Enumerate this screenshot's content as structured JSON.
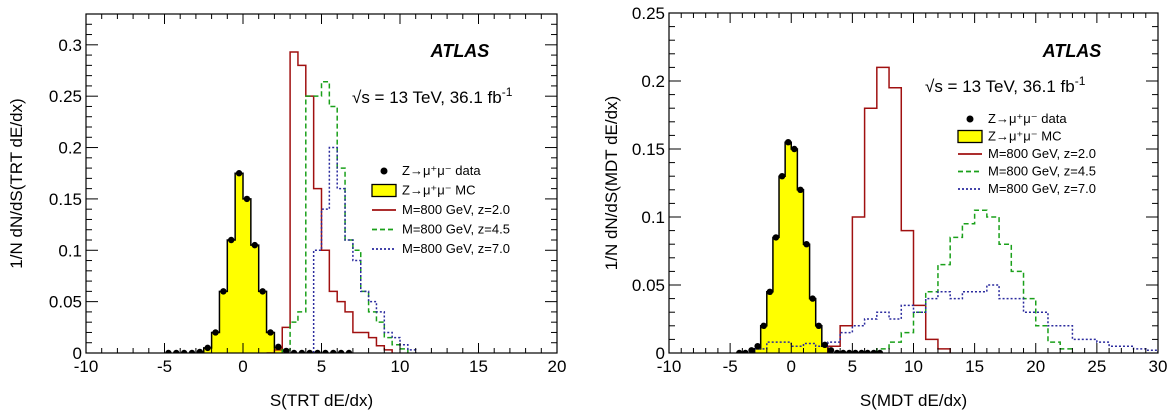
{
  "chart_data": [
    {
      "type": "histogram",
      "atlas_label": "ATLAS",
      "energy_label": "√s = 13 TeV, 36.1 fb",
      "energy_sup": "-1",
      "xlabel": "S(TRT dE/dx)",
      "ylabel": "1/N dN/dS(TRT dE/dx)",
      "xlim": [
        -10,
        20
      ],
      "ylim": [
        0,
        0.33
      ],
      "xticks": [
        "-10",
        "-5",
        "0",
        "5",
        "10",
        "15",
        "20"
      ],
      "xtick_values": [
        -10,
        -5,
        0,
        5,
        10,
        15,
        20
      ],
      "yticks": [
        "0",
        "0.05",
        "0.1",
        "0.15",
        "0.2",
        "0.25",
        "0.3"
      ],
      "ytick_values": [
        0,
        0.05,
        0.1,
        0.15,
        0.2,
        0.25,
        0.3
      ],
      "legend_position": "right",
      "legend": [
        {
          "label": "Z→μ⁺μ⁻ data",
          "kind": "marker"
        },
        {
          "label": "Z→μ⁺μ⁻ MC",
          "kind": "fill"
        },
        {
          "label": "M=800 GeV, z=2.0",
          "kind": "line",
          "color": "#a01010",
          "dash": ""
        },
        {
          "label": "M=800 GeV, z=4.5",
          "kind": "line",
          "color": "#1aa01a",
          "dash": "5,3"
        },
        {
          "label": "M=800 GeV, z=7.0",
          "kind": "line",
          "color": "#2b2b9e",
          "dash": "2,2"
        }
      ],
      "mc": {
        "edges": [
          -2.5,
          -2,
          -1.5,
          -1,
          -0.5,
          0,
          0.5,
          1,
          1.5,
          2,
          2.5
        ],
        "values": [
          0.005,
          0.02,
          0.06,
          0.11,
          0.175,
          0.15,
          0.105,
          0.06,
          0.02,
          0.005
        ]
      },
      "data_points": {
        "x": [
          -4.75,
          -4.25,
          -3.75,
          -3.25,
          -2.75,
          -2.25,
          -1.75,
          -1.25,
          -0.75,
          -0.25,
          0.25,
          0.75,
          1.25,
          1.75,
          2.25,
          2.75,
          3.25,
          3.75,
          4.25,
          4.75,
          5.25,
          5.75,
          6.25,
          6.75
        ],
        "y": [
          0,
          0,
          0,
          0,
          0.001,
          0.005,
          0.02,
          0.06,
          0.11,
          0.175,
          0.15,
          0.105,
          0.06,
          0.02,
          0.006,
          0.002,
          0,
          0,
          0,
          0,
          0,
          0,
          0,
          0
        ]
      },
      "signals": [
        {
          "name": "M=800 GeV, z=2.0",
          "color": "#a01010",
          "dash": "",
          "edges": [
            1.5,
            2,
            2.5,
            3,
            3.5,
            4,
            4.5,
            5,
            5.5,
            6,
            6.5,
            7,
            7.5,
            8,
            8.5,
            9,
            9.5
          ],
          "values": [
            0,
            0.003,
            0.025,
            0.293,
            0.28,
            0.25,
            0.16,
            0.1,
            0.06,
            0.05,
            0.04,
            0.02,
            0.02,
            0.015,
            0.007,
            0.003
          ]
        },
        {
          "name": "M=800 GeV, z=4.5",
          "color": "#1aa01a",
          "dash": "5,3",
          "edges": [
            2.5,
            3,
            3.5,
            4,
            4.5,
            5,
            5.5,
            6,
            6.5,
            7,
            7.5,
            8,
            8.5,
            9,
            9.5,
            10,
            10.5
          ],
          "values": [
            0.003,
            0.03,
            0.04,
            0.25,
            0.25,
            0.264,
            0.24,
            0.18,
            0.11,
            0.1,
            0.06,
            0.04,
            0.03,
            0.015,
            0.008,
            0.004
          ]
        },
        {
          "name": "M=800 GeV, z=7.0",
          "color": "#2b2b9e",
          "dash": "2,2",
          "edges": [
            4.5,
            5,
            5.5,
            6,
            6.5,
            7,
            7.5,
            8,
            8.5,
            9,
            9.5,
            10,
            10.5,
            11
          ],
          "values": [
            0.1,
            0.14,
            0.2,
            0.16,
            0.11,
            0.09,
            0.06,
            0.05,
            0.04,
            0.02,
            0.015,
            0.008,
            0.003
          ]
        }
      ]
    },
    {
      "type": "histogram",
      "atlas_label": "ATLAS",
      "energy_label": "√s = 13 TeV, 36.1 fb",
      "energy_sup": "-1",
      "xlabel": "S(MDT dE/dx)",
      "ylabel": "1/N dN/dS(MDT dE/dx)",
      "xlim": [
        -10,
        30
      ],
      "ylim": [
        0,
        0.25
      ],
      "xticks": [
        "-10",
        "-5",
        "0",
        "5",
        "10",
        "15",
        "20",
        "25",
        "30"
      ],
      "xtick_values": [
        -10,
        -5,
        0,
        5,
        10,
        15,
        20,
        25,
        30
      ],
      "yticks": [
        "0",
        "0.05",
        "0.1",
        "0.15",
        "0.2",
        "0.25"
      ],
      "ytick_values": [
        0,
        0.05,
        0.1,
        0.15,
        0.2,
        0.25
      ],
      "legend_position": "top-right",
      "legend": [
        {
          "label": "Z→μ⁺μ⁻ data",
          "kind": "marker"
        },
        {
          "label": "Z→μ⁺μ⁻ MC",
          "kind": "fill"
        },
        {
          "label": "M=800 GeV, z=2.0",
          "kind": "line",
          "color": "#a01010",
          "dash": ""
        },
        {
          "label": "M=800 GeV, z=4.5",
          "kind": "line",
          "color": "#1aa01a",
          "dash": "5,3"
        },
        {
          "label": "M=800 GeV, z=7.0",
          "kind": "line",
          "color": "#2b2b9e",
          "dash": "2,2"
        }
      ],
      "mc": {
        "edges": [
          -3,
          -2.5,
          -2,
          -1.5,
          -1,
          -0.5,
          0,
          0.5,
          1,
          1.5,
          2,
          2.5,
          3
        ],
        "values": [
          0.003,
          0.02,
          0.045,
          0.085,
          0.13,
          0.155,
          0.15,
          0.12,
          0.08,
          0.04,
          0.02,
          0.005
        ]
      },
      "data_points": {
        "x": [
          -4.25,
          -3.75,
          -3.25,
          -2.75,
          -2.25,
          -1.75,
          -1.25,
          -0.75,
          -0.25,
          0.25,
          0.75,
          1.25,
          1.75,
          2.25,
          2.75,
          3.25,
          3.75,
          4.25,
          4.75,
          5.25,
          5.75,
          6.25,
          6.75,
          7.25
        ],
        "y": [
          0,
          0,
          0.002,
          0.005,
          0.02,
          0.045,
          0.085,
          0.13,
          0.155,
          0.15,
          0.12,
          0.08,
          0.04,
          0.02,
          0.006,
          0.002,
          0,
          0,
          0,
          0,
          0,
          0,
          0,
          0
        ]
      },
      "signals": [
        {
          "name": "M=800 GeV, z=2.0",
          "color": "#a01010",
          "dash": "",
          "edges": [
            3,
            4,
            5,
            6,
            7,
            8,
            9,
            10,
            11,
            12,
            13
          ],
          "values": [
            0.005,
            0.02,
            0.1,
            0.18,
            0.21,
            0.195,
            0.09,
            0.035,
            0.01,
            0.003
          ]
        },
        {
          "name": "M=800 GeV, z=4.5",
          "color": "#1aa01a",
          "dash": "5,3",
          "edges": [
            7,
            8,
            9,
            10,
            11,
            12,
            13,
            14,
            15,
            16,
            17,
            18,
            19,
            20,
            21,
            22,
            23
          ],
          "values": [
            0.003,
            0.008,
            0.015,
            0.03,
            0.045,
            0.065,
            0.085,
            0.095,
            0.105,
            0.1,
            0.08,
            0.06,
            0.04,
            0.02,
            0.008,
            0.003
          ]
        },
        {
          "name": "M=800 GeV, z=7.0",
          "color": "#2b2b9e",
          "dash": "2,2",
          "edges": [
            -3,
            -2,
            -1,
            0,
            1,
            2,
            3,
            4,
            5,
            6,
            7,
            8,
            9,
            10,
            11,
            12,
            13,
            14,
            15,
            16,
            17,
            18,
            19,
            20,
            21,
            22,
            23,
            24,
            25,
            26,
            27,
            28,
            29,
            30
          ],
          "values": [
            0.003,
            0.008,
            0.008,
            0.005,
            0.007,
            0.005,
            0.008,
            0.015,
            0.02,
            0.025,
            0.03,
            0.025,
            0.035,
            0.03,
            0.04,
            0.045,
            0.04,
            0.045,
            0.045,
            0.05,
            0.04,
            0.04,
            0.03,
            0.03,
            0.02,
            0.02,
            0.01,
            0.01,
            0.008,
            0.005,
            0.005,
            0.003,
            0.002
          ]
        }
      ]
    }
  ]
}
